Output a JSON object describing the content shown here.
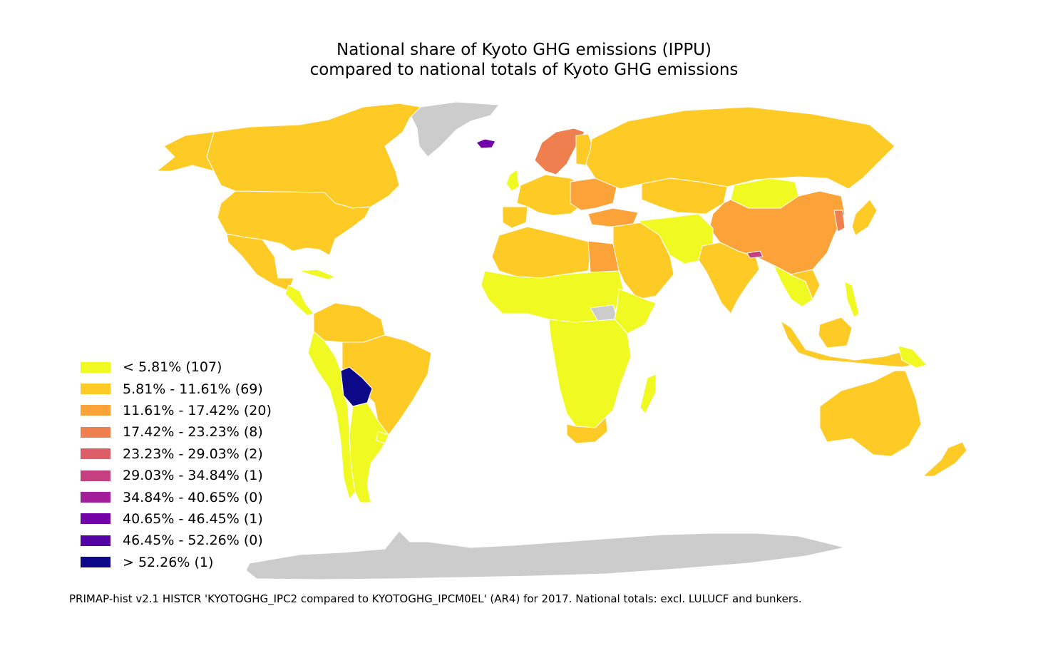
{
  "title": {
    "line1": "National share of Kyoto GHG emissions (IPPU)",
    "line2": "compared to national totals of Kyoto GHG emissions"
  },
  "legend": {
    "items": [
      {
        "label": "< 5.81% (107)",
        "color": "#f0f921"
      },
      {
        "label": "5.81% - 11.61% (69)",
        "color": "#fdca26"
      },
      {
        "label": "11.61% - 17.42% (20)",
        "color": "#fba238"
      },
      {
        "label": "17.42% - 23.23% (8)",
        "color": "#f07f4f"
      },
      {
        "label": "23.23% - 29.03% (2)",
        "color": "#dd5e66"
      },
      {
        "label": "29.03% - 34.84% (1)",
        "color": "#c5407e"
      },
      {
        "label": "34.84% - 40.65% (0)",
        "color": "#a21d9a"
      },
      {
        "label": "40.65% - 46.45% (1)",
        "color": "#7201a8"
      },
      {
        "label": "46.45% - 52.26% (0)",
        "color": "#5302a3"
      },
      {
        "label": "> 52.26% (1)",
        "color": "#0d0887"
      }
    ]
  },
  "no_data_color": "#cccccc",
  "source_note": "PRIMAP-hist v2.1 HISTCR 'KYOTOGHG_IPC2 compared to KYOTOGHG_IPCM0EL' (AR4) for 2017. National totals: excl. LULUCF and bunkers."
}
